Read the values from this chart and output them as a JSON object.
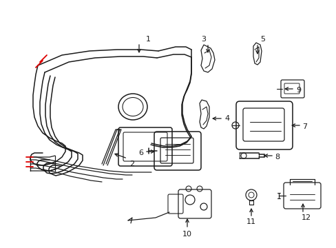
{
  "bg_color": "#ffffff",
  "line_color": "#1a1a1a",
  "red_color": "#dd0000",
  "fig_width": 4.89,
  "fig_height": 3.6,
  "dpi": 100
}
